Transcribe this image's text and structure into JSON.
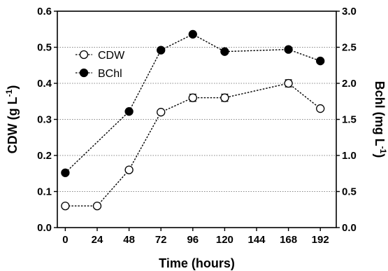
{
  "chart_data": {
    "type": "line",
    "xlabel": "Time (hours)",
    "ylabel_left": {
      "main": "CDW (g L",
      "sup": "-1",
      "end": ")"
    },
    "ylabel_right": {
      "main": "Bchl (mg L",
      "sup": "-1",
      "end": ")"
    },
    "x_ticks": [
      "0",
      "24",
      "48",
      "72",
      "96",
      "120",
      "144",
      "168",
      "192"
    ],
    "x_range": [
      -6,
      204
    ],
    "y_left_range": [
      0,
      0.6
    ],
    "y_left_ticks": [
      "0.0",
      "0.1",
      "0.2",
      "0.3",
      "0.4",
      "0.5",
      "0.6"
    ],
    "y_right_range": [
      0,
      3.0
    ],
    "y_right_ticks": [
      "0.0",
      "0.5",
      "1.0",
      "1.5",
      "2.0",
      "2.5",
      "3.0"
    ],
    "grid": "horizontal dotted",
    "legend_position": "top-left",
    "series": [
      {
        "name": "CDW",
        "axis": "left",
        "marker": "open-circle",
        "line_style": "dotted",
        "x": [
          0,
          24,
          48,
          72,
          96,
          120,
          168,
          192
        ],
        "y": [
          0.06,
          0.06,
          0.16,
          0.32,
          0.36,
          0.36,
          0.4,
          0.33
        ],
        "error": [
          0,
          0,
          0,
          0,
          0.01,
          0.01,
          0.01,
          0
        ]
      },
      {
        "name": "BChl",
        "axis": "right",
        "marker": "filled-circle",
        "line_style": "dotted",
        "x": [
          0,
          48,
          72,
          96,
          120,
          168,
          192
        ],
        "y": [
          0.76,
          1.61,
          2.46,
          2.68,
          2.44,
          2.47,
          2.31
        ],
        "error": [
          0,
          0,
          0,
          0,
          0,
          0,
          0
        ]
      }
    ]
  }
}
